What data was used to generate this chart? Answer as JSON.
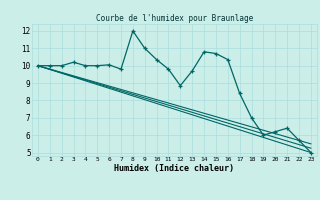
{
  "title": "Courbe de l'humidex pour Braunlage",
  "xlabel": "Humidex (Indice chaleur)",
  "background_color": "#cceee8",
  "grid_color": "#aadddd",
  "line_color": "#006666",
  "xlim": [
    -0.5,
    23.5
  ],
  "ylim": [
    4.8,
    12.4
  ],
  "yticks": [
    5,
    6,
    7,
    8,
    9,
    10,
    11,
    12
  ],
  "xticks": [
    0,
    1,
    2,
    3,
    4,
    5,
    6,
    7,
    8,
    9,
    10,
    11,
    12,
    13,
    14,
    15,
    16,
    17,
    18,
    19,
    20,
    21,
    22,
    23
  ],
  "series1_x": [
    0,
    1,
    2,
    3,
    4,
    5,
    6,
    7,
    8,
    9,
    10,
    11,
    12,
    13,
    14,
    15,
    16,
    17,
    18,
    19,
    20,
    21,
    22,
    23
  ],
  "series1_y": [
    10.0,
    10.0,
    10.0,
    10.2,
    10.0,
    10.0,
    10.05,
    9.8,
    12.0,
    11.0,
    10.35,
    9.8,
    8.85,
    9.7,
    10.8,
    10.7,
    10.35,
    8.4,
    7.0,
    6.0,
    6.2,
    6.4,
    5.7,
    5.0
  ],
  "line2_x": [
    0,
    23
  ],
  "line2_y": [
    10.0,
    5.0
  ],
  "line3_x": [
    0,
    23
  ],
  "line3_y": [
    10.0,
    5.25
  ],
  "line4_x": [
    0,
    23
  ],
  "line4_y": [
    10.0,
    5.5
  ]
}
